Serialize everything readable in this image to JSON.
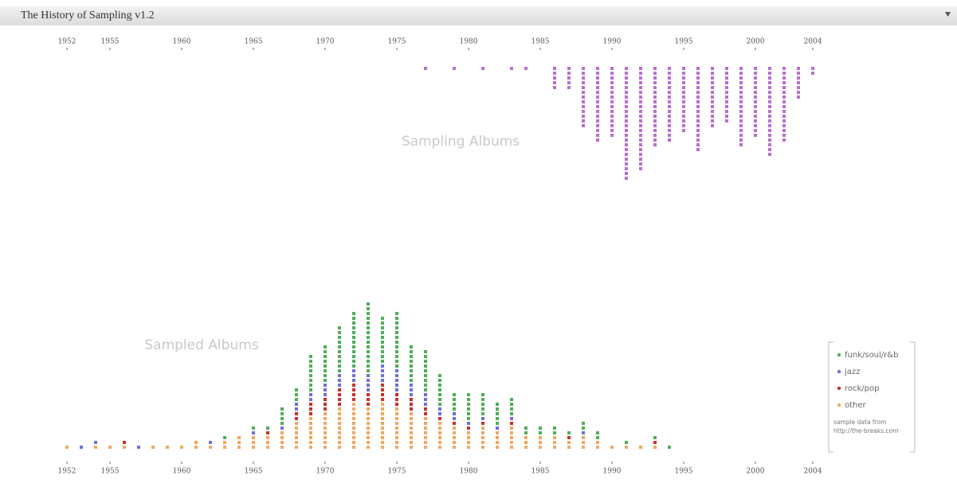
{
  "window": {
    "title": "The History of Sampling v1.2"
  },
  "chart_data": {
    "type": "dot-columns",
    "xlim": [
      1952,
      2004
    ],
    "xticks": [
      1952,
      1955,
      1960,
      1965,
      1970,
      1975,
      1980,
      1985,
      1990,
      1995,
      2000,
      2004
    ],
    "sampling": {
      "label": "Sampling Albums",
      "color": "#b86fd0",
      "x": [
        1977,
        1979,
        1981,
        1983,
        1984,
        1986,
        1987,
        1988,
        1989,
        1990,
        1991,
        1992,
        1993,
        1994,
        1995,
        1996,
        1997,
        1998,
        1999,
        2000,
        2001,
        2002,
        2003,
        2004
      ],
      "values": [
        1,
        1,
        1,
        1,
        1,
        5,
        5,
        13,
        16,
        15,
        24,
        22,
        17,
        16,
        14,
        18,
        13,
        12,
        17,
        15,
        19,
        16,
        7,
        2
      ]
    },
    "sampled": {
      "label": "Sampled Albums",
      "x": [
        1952,
        1953,
        1954,
        1955,
        1956,
        1957,
        1958,
        1959,
        1960,
        1961,
        1962,
        1963,
        1964,
        1965,
        1966,
        1967,
        1968,
        1969,
        1970,
        1971,
        1972,
        1973,
        1974,
        1975,
        1976,
        1977,
        1978,
        1979,
        1980,
        1981,
        1982,
        1983,
        1984,
        1985,
        1986,
        1987,
        1988,
        1989,
        1990,
        1991,
        1992,
        1993,
        1994
      ],
      "series": [
        {
          "name": "other",
          "color": "#f0a860",
          "values": [
            1,
            0,
            1,
            1,
            1,
            0,
            1,
            1,
            1,
            2,
            1,
            2,
            3,
            3,
            3,
            4,
            6,
            7,
            8,
            9,
            10,
            9,
            10,
            9,
            8,
            7,
            6,
            5,
            4,
            5,
            4,
            5,
            3,
            3,
            3,
            2,
            3,
            2,
            1,
            1,
            1,
            1,
            0
          ]
        },
        {
          "name": "rock/pop",
          "color": "#c8322c",
          "values": [
            0,
            0,
            0,
            0,
            1,
            0,
            0,
            0,
            0,
            0,
            0,
            0,
            0,
            0,
            1,
            0,
            2,
            3,
            3,
            4,
            4,
            3,
            4,
            3,
            3,
            2,
            1,
            1,
            1,
            1,
            0,
            1,
            0,
            0,
            0,
            1,
            0,
            0,
            0,
            0,
            0,
            1,
            0
          ]
        },
        {
          "name": "jazz",
          "color": "#6f6fd8",
          "values": [
            0,
            1,
            1,
            0,
            0,
            1,
            0,
            0,
            0,
            0,
            1,
            0,
            0,
            1,
            0,
            1,
            2,
            2,
            3,
            3,
            3,
            4,
            4,
            5,
            3,
            3,
            2,
            2,
            1,
            1,
            1,
            1,
            0,
            0,
            0,
            0,
            1,
            0,
            0,
            0,
            0,
            0,
            0
          ]
        },
        {
          "name": "funk/soul/r&b",
          "color": "#4fae5a",
          "values": [
            0,
            0,
            0,
            0,
            0,
            0,
            0,
            0,
            0,
            0,
            0,
            1,
            0,
            1,
            1,
            4,
            3,
            8,
            8,
            10,
            12,
            15,
            10,
            12,
            8,
            9,
            7,
            4,
            6,
            5,
            5,
            4,
            2,
            2,
            2,
            1,
            2,
            2,
            0,
            1,
            0,
            1,
            1
          ]
        }
      ]
    },
    "note": [
      "sample data from",
      "http://the-breaks.com"
    ]
  }
}
